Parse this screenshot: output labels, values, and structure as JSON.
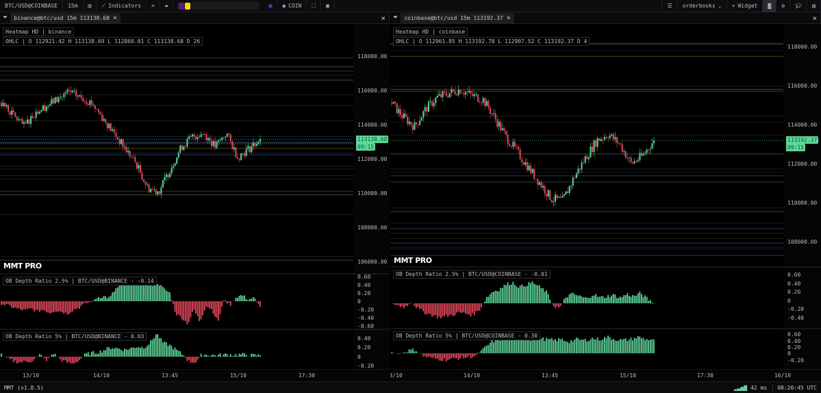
{
  "toolbar": {
    "symbol": "BTC/USD@COINBASE",
    "timeframe": "15m",
    "indicators_label": "Indicators",
    "coin_label": "COIN",
    "layout_label": "orderbooks",
    "widget_label": "Widget",
    "colors": [
      "#5b1b7a",
      "#f5d90a"
    ]
  },
  "panels": [
    {
      "tab": "binance@btc/usd 15m 113138.68",
      "legend": "Heatmap HD | binance",
      "ohlc": "OHLC | O 112921.42 H 113138.69 L 112860.01 C 113138.68 D 26",
      "price_tag": "113138.68",
      "time_tag": "09:15",
      "watermark": "MMT PRO",
      "ind1": "OB Depth Ratio 2.5% | BTC/USD@BINANCE - -0.14",
      "ind2": "OB Depth Ratio 5% | BTC/USD@BINANCE - 0.03",
      "price_ticks": [
        "118000.00",
        "116000.00",
        "114000.00",
        "112000.00",
        "110000.00",
        "108000.00",
        "106000.00"
      ],
      "ind1_ticks": [
        "0.60",
        "0.40",
        "0.20",
        "0",
        "-0.20",
        "-0.40",
        "-0.60"
      ],
      "ind2_ticks": [
        "0.40",
        "0.20",
        "0",
        "-0.20"
      ],
      "time_ticks": [
        "13/10",
        "14/10",
        "13:45",
        "15/10",
        "17:30"
      ]
    },
    {
      "tab": "coinbase@btc/usd 15m 113192.37",
      "legend": "Heatmap HD | coinbase",
      "ohlc": "OHLC | O 112961.85 H 113192.78 L 112907.52 C 113192.37 D 4",
      "price_tag": "113192.37",
      "time_tag": "09:15",
      "watermark": "MMT PRO",
      "ind1": "OB Depth Ratio 2.5% | BTC/USD@COINBASE - -0.01",
      "ind2": "OB Depth Ratio 5% | BTC/USD@COINBASE - 0.30",
      "price_ticks": [
        "118000.00",
        "116000.00",
        "114000.00",
        "112000.00",
        "110000.00",
        "108000.00"
      ],
      "ind1_ticks": [
        "0.60",
        "0.40",
        "0.20",
        "0",
        "-0.20",
        "-0.40"
      ],
      "ind2_ticks": [
        "0.60",
        "0.40",
        "0.20",
        "0",
        "-0.20"
      ],
      "time_ticks": [
        "3/10",
        "14/10",
        "13:45",
        "15/10",
        "17:30",
        "16/10"
      ]
    }
  ],
  "status": {
    "version": "MMT (v1.8.5)",
    "latency": "42 ms",
    "clock": "08:20:45 UTC"
  },
  "chart_data": [
    {
      "type": "candlestick",
      "exchange": "binance",
      "closes": [
        115300,
        114600,
        113900,
        114700,
        115100,
        115500,
        115900,
        115600,
        115300,
        114400,
        113500,
        112600,
        111700,
        110300,
        110100,
        111400,
        112700,
        113300,
        113500,
        112700,
        113500,
        112100,
        112600,
        113138.68
      ],
      "depth_2_5": [
        -0.05,
        -0.1,
        -0.15,
        -0.2,
        -0.22,
        -0.18,
        -0.25,
        -0.2,
        -0.28,
        -0.22,
        -0.25,
        -0.3,
        -0.2,
        -0.15,
        -0.05,
        -0.02,
        0.1,
        0.12,
        0.08,
        0.3,
        0.4,
        0.45,
        0.42,
        0.5,
        0.55,
        0.4,
        0.45,
        0.3,
        0.2,
        -0.3,
        -0.4,
        -0.55,
        -0.2,
        -0.5,
        -0.1,
        -0.2,
        -0.5,
        0.05,
        -0.1,
        0.1,
        0.15,
        0.05,
        0.08,
        -0.14
      ],
      "depth_5": [
        0.05,
        -0.05,
        -0.1,
        -0.12,
        -0.1,
        -0.08,
        0.05,
        -0.1,
        0.08,
        -0.05,
        -0.12,
        -0.15,
        -0.08,
        0.05,
        0.08,
        0.1,
        0.15,
        0.2,
        0.18,
        0.15,
        0.18,
        0.22,
        0.2,
        0.3,
        0.5,
        0.3,
        0.25,
        0.15,
        0.05,
        -0.1,
        -0.12,
        0.05,
        0.04,
        0.03,
        0.04,
        0.05,
        0.04,
        0.05,
        0.04,
        0.03,
        0.03
      ]
    },
    {
      "type": "candlestick",
      "exchange": "coinbase",
      "closes": [
        115100,
        114400,
        113900,
        114800,
        115400,
        115600,
        115800,
        115500,
        115300,
        114400,
        113400,
        112600,
        111800,
        111000,
        110200,
        110100,
        111300,
        112300,
        113200,
        113500,
        113000,
        112000,
        112400,
        113192.37
      ],
      "depth_2_5": [
        0,
        -0.05,
        -0.08,
        0.02,
        -0.12,
        -0.2,
        -0.25,
        -0.3,
        -0.28,
        -0.25,
        -0.2,
        -0.22,
        -0.25,
        -0.15,
        0.1,
        0.25,
        0.3,
        0.4,
        0.45,
        0.35,
        0.4,
        0.45,
        0.35,
        0.25,
        -0.05,
        -0.1,
        0.15,
        0.2,
        0.15,
        0.1,
        0.2,
        0.12,
        0.15,
        0.18,
        0.12,
        0.2,
        0.15,
        0.22,
        0.1,
        -0.01
      ],
      "depth_5": [
        0.02,
        -0.02,
        0.05,
        0.08,
        -0.05,
        -0.1,
        -0.12,
        -0.14,
        -0.12,
        -0.1,
        -0.08,
        -0.05,
        0.1,
        0.25,
        0.3,
        0.32,
        0.3,
        0.35,
        0.3,
        0.32,
        0.3,
        0.28,
        0.3,
        0.25,
        0.3,
        0.28,
        0.32,
        0.3,
        0.35,
        0.3,
        0.28,
        0.3,
        0.35,
        0.3,
        0.3
      ]
    }
  ],
  "colors": {
    "up": "#5fd69a",
    "down": "#e5485d",
    "bg": "#000000"
  }
}
